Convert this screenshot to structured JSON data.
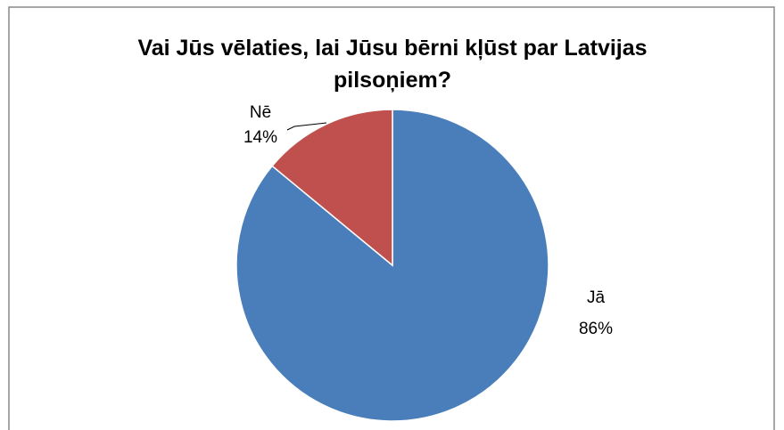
{
  "chart_data": {
    "type": "pie",
    "title": "Vai Jūs vēlaties, lai Jūsu bērni kļūst par Latvijas pilsoņiem?",
    "categories": [
      "Jā",
      "Nē"
    ],
    "values": [
      86,
      14
    ],
    "value_labels": [
      "86%",
      "14%"
    ],
    "colors": [
      "#4a7ebb",
      "#c0504d"
    ]
  }
}
